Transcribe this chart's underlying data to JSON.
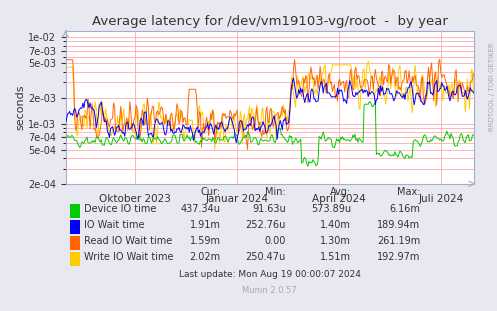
{
  "title": "Average latency for /dev/vm19103-vg/root  -  by year",
  "ylabel": "seconds",
  "background_color": "#e8e8f0",
  "plot_bg_color": "#ffffff",
  "grid_color": "#ff9999",
  "title_color": "#333333",
  "watermark": "Munin 2.0.57",
  "right_label": "RRDTOOL / TOBI OETIKER",
  "x_tick_labels": [
    "Oktober 2023",
    "Januar 2024",
    "April 2024",
    "Juli 2024"
  ],
  "ylim_log": [
    -3.7,
    -1.7
  ],
  "legend_entries": [
    {
      "label": "Device IO time",
      "color": "#00cc00"
    },
    {
      "label": "IO Wait time",
      "color": "#0000ff"
    },
    {
      "label": "Read IO Wait time",
      "color": "#ff6600"
    },
    {
      "label": "Write IO Wait time",
      "color": "#ffcc00"
    }
  ],
  "table_headers": [
    "Cur:",
    "Min:",
    "Avg:",
    "Max:"
  ],
  "table_data": [
    [
      "437.34u",
      "91.63u",
      "573.89u",
      "6.16m"
    ],
    [
      "1.91m",
      "252.76u",
      "1.40m",
      "189.94m"
    ],
    [
      "1.59m",
      "0.00",
      "1.30m",
      "261.19m"
    ],
    [
      "2.02m",
      "250.47u",
      "1.51m",
      "192.97m"
    ]
  ],
  "last_update": "Last update: Mon Aug 19 00:00:07 2024",
  "n_points": 400,
  "seed": 42
}
